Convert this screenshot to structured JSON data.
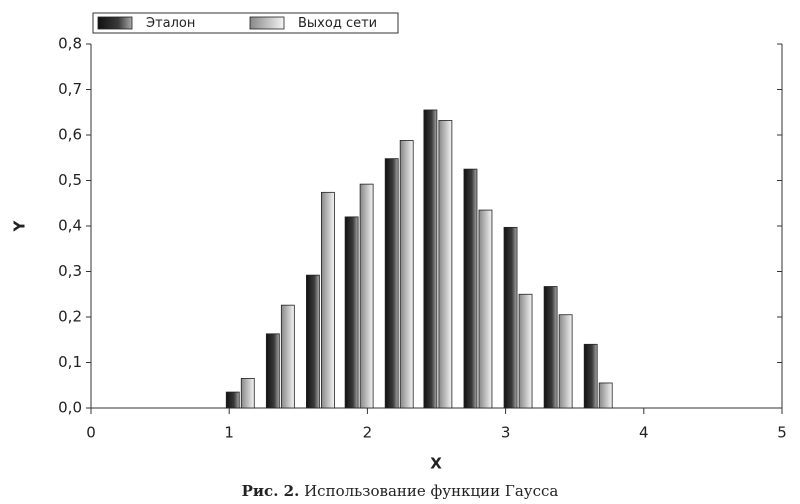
{
  "chart_data": {
    "type": "bar",
    "x_label": "X",
    "y_label": "Y",
    "caption_label": "Рис. 2.",
    "caption": "Использование функции Гаусса",
    "x": [
      1.08,
      1.37,
      1.66,
      1.94,
      2.23,
      2.51,
      2.8,
      3.09,
      3.38,
      3.67
    ],
    "series": [
      {
        "name": "Эталон",
        "color": "#3a3a3a",
        "values": [
          0.035,
          0.163,
          0.292,
          0.42,
          0.548,
          0.655,
          0.525,
          0.397,
          0.267,
          0.14
        ]
      },
      {
        "name": "Выход сети",
        "color": "#c8c8c8",
        "values": [
          0.065,
          0.226,
          0.474,
          0.492,
          0.588,
          0.632,
          0.435,
          0.25,
          0.205,
          0.055
        ]
      }
    ],
    "xlim": [
      0,
      5
    ],
    "xticks": [
      0,
      1,
      2,
      3,
      4,
      5
    ],
    "ylim": [
      0,
      0.8
    ],
    "yticks": [
      {
        "value": 0,
        "label": "0,0"
      },
      {
        "value": 0.1,
        "label": "0,1"
      },
      {
        "value": 0.2,
        "label": "0,2"
      },
      {
        "value": 0.3,
        "label": "0,3"
      },
      {
        "value": 0.4,
        "label": "0,4"
      },
      {
        "value": 0.5,
        "label": "0,5"
      },
      {
        "value": 0.6,
        "label": "0,6"
      },
      {
        "value": 0.7,
        "label": "0,7"
      },
      {
        "value": 0.8,
        "label": "0,8"
      }
    ],
    "legend": "top-left"
  }
}
